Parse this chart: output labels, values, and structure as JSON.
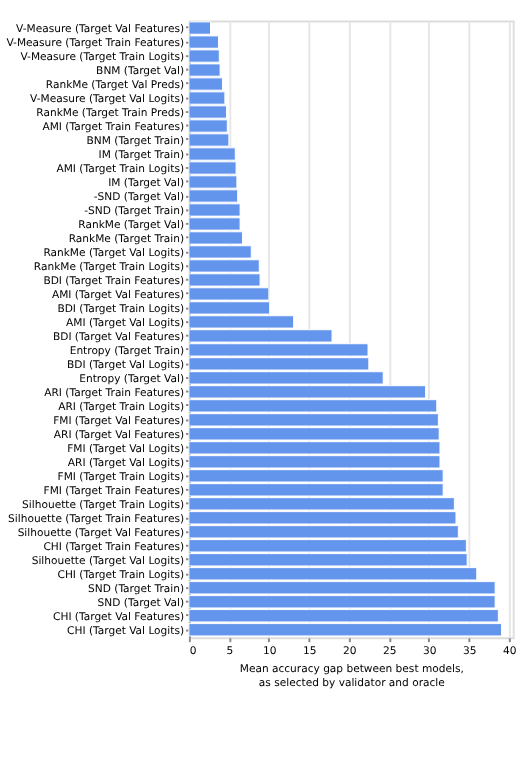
{
  "chart_data": {
    "type": "bar",
    "orientation": "horizontal",
    "xlabel": "Mean accuracy gap between best models,\nas selected by validator and oracle",
    "color": "#6495ed",
    "grid": "x",
    "xlim": [
      0,
      40.5
    ],
    "xticks": [
      0,
      5,
      10,
      15,
      20,
      25,
      30,
      35,
      40
    ],
    "categories": [
      "V-Measure (Target Val Features)",
      "V-Measure (Target Train Features)",
      "V-Measure (Target Train Logits)",
      "BNM (Target Val)",
      "RankMe (Target Val Preds)",
      "V-Measure (Target Val Logits)",
      "RankMe (Target Train Preds)",
      "AMI (Target Train Features)",
      "BNM (Target Train)",
      "IM (Target Train)",
      "AMI (Target Train Logits)",
      "IM (Target Val)",
      "-SND (Target Val)",
      "-SND (Target Train)",
      "RankMe (Target Val)",
      "RankMe (Target Train)",
      "RankMe (Target Val Logits)",
      "RankMe (Target Train Logits)",
      "BDI (Target Train Features)",
      "AMI (Target Val Features)",
      "BDI (Target Train Logits)",
      "AMI (Target Val Logits)",
      "BDI (Target Val Features)",
      "Entropy (Target Train)",
      "BDI (Target Val Logits)",
      "Entropy (Target Val)",
      "ARI (Target Train Features)",
      "ARI (Target Train Logits)",
      "FMI (Target Val Features)",
      "ARI (Target Val Features)",
      "FMI (Target Val Logits)",
      "ARI (Target Val Logits)",
      "FMI (Target Train Logits)",
      "FMI (Target Train Features)",
      "Silhouette (Target Train Logits)",
      "Silhouette (Target Train Features)",
      "Silhouette (Target Val Features)",
      "CHI (Target Train Features)",
      "Silhouette (Target Val Logits)",
      "CHI (Target Train Logits)",
      "SND (Target Train)",
      "SND (Target Val)",
      "CHI (Target Val Features)",
      "CHI (Target Val Logits)"
    ],
    "values": [
      2.7,
      3.7,
      3.8,
      3.9,
      4.2,
      4.5,
      4.7,
      4.8,
      5.0,
      5.8,
      5.9,
      6.0,
      6.1,
      6.4,
      6.4,
      6.7,
      7.8,
      8.8,
      8.9,
      10.0,
      10.1,
      13.1,
      17.9,
      22.4,
      22.5,
      24.3,
      29.6,
      31.0,
      31.2,
      31.3,
      31.4,
      31.4,
      31.8,
      31.8,
      33.2,
      33.4,
      33.7,
      34.7,
      34.8,
      36.0,
      38.3,
      38.3,
      38.7,
      39.1
    ]
  }
}
